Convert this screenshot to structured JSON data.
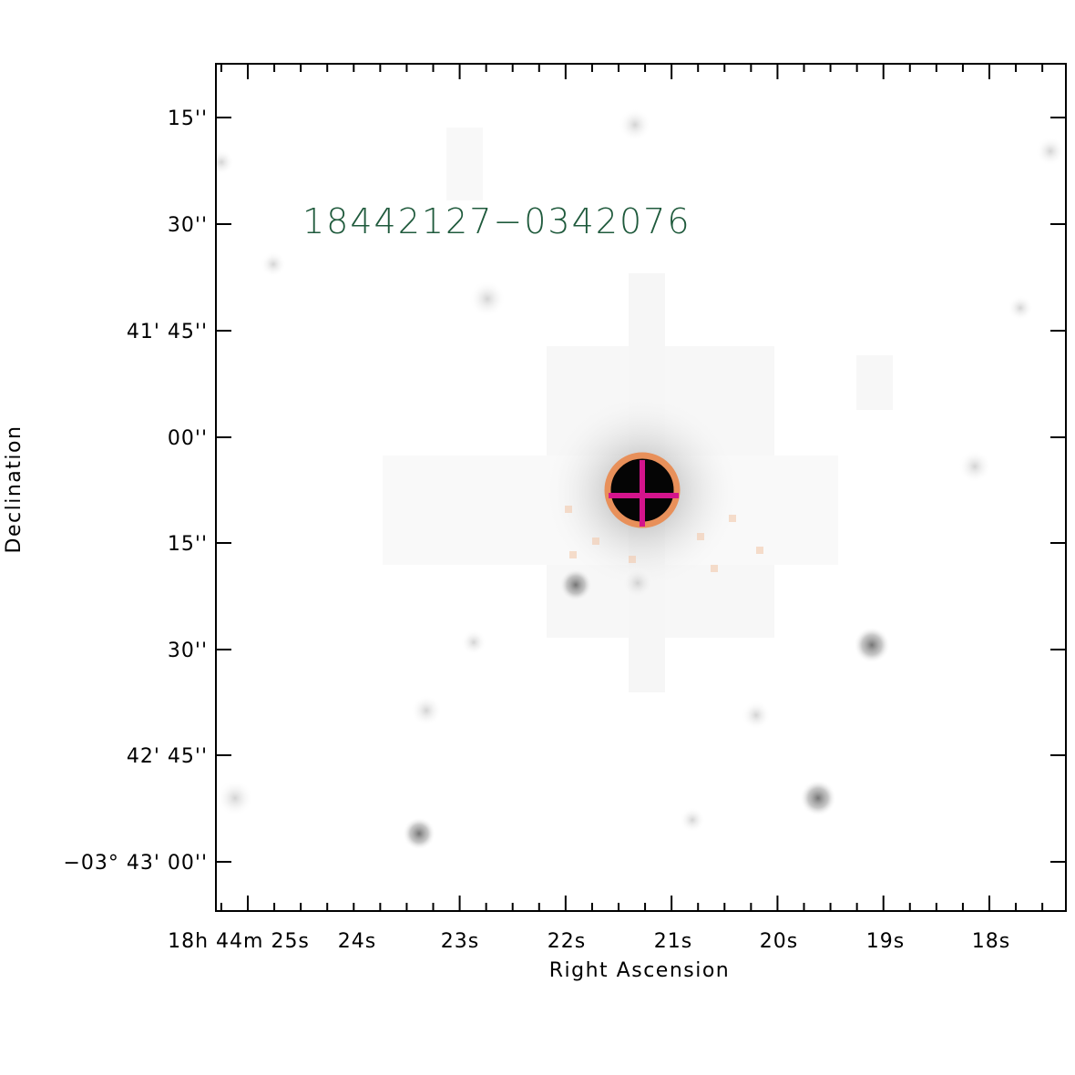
{
  "object_label": "18442127−0342076",
  "colors": {
    "label": "#1f5a3c",
    "circle": "#e8905a",
    "cross": "#d4148c",
    "frame": "#000000"
  },
  "axes": {
    "x_title": "Right Ascension",
    "y_title": "Declination",
    "y_ticks": [
      {
        "text": "15''"
      },
      {
        "text": "30''"
      },
      {
        "text": "41' 45''"
      },
      {
        "text": "00''"
      },
      {
        "text": "15''"
      },
      {
        "text": "30''"
      },
      {
        "text": "42' 45''"
      },
      {
        "text": "−03° 43' 00''"
      }
    ],
    "x_ticks": [
      {
        "text": "18h 44m 25s"
      },
      {
        "text": "24s"
      },
      {
        "text": "23s"
      },
      {
        "text": "22s"
      },
      {
        "text": "21s"
      },
      {
        "text": "20s"
      },
      {
        "text": "19s"
      },
      {
        "text": "18s"
      }
    ]
  }
}
